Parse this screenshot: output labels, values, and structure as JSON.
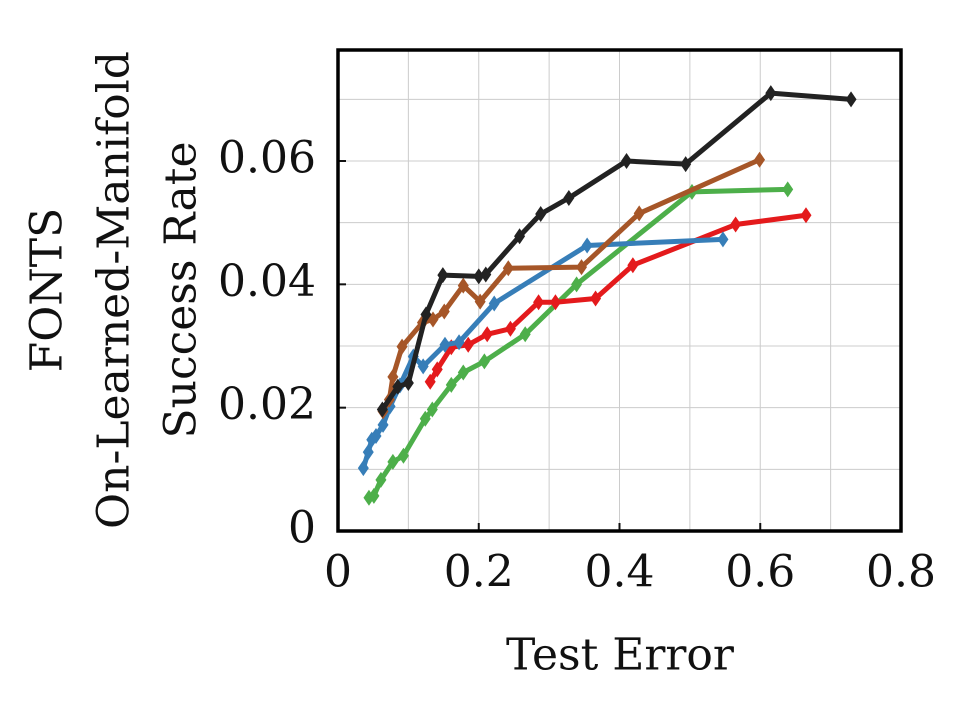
{
  "chart_data": {
    "type": "line",
    "xlabel": "Test Error",
    "ylabel": [
      "FONTS",
      "On-Learned-Manifold",
      "Success Rate"
    ],
    "xlim": [
      0,
      0.8
    ],
    "ylim": [
      0,
      0.078
    ],
    "xticks": [
      0,
      0.2,
      0.4,
      0.6,
      0.8
    ],
    "yticks": [
      0,
      0.02,
      0.04,
      0.06
    ],
    "xminorticks": [
      0.1,
      0.3,
      0.5,
      0.7
    ],
    "yminorticks": [
      0.01,
      0.03,
      0.05,
      0.07
    ],
    "grid": true,
    "series": [
      {
        "color": "#4daf4a",
        "x": [
          0.044,
          0.051,
          0.061,
          0.078,
          0.093,
          0.124,
          0.134,
          0.161,
          0.178,
          0.208,
          0.266,
          0.339,
          0.503,
          0.639
        ],
        "values": [
          0.0054,
          0.0057,
          0.0083,
          0.0112,
          0.0122,
          0.0182,
          0.0197,
          0.0237,
          0.0257,
          0.0275,
          0.0319,
          0.04,
          0.055,
          0.0554
        ]
      },
      {
        "color": "#e41a1c",
        "x": [
          0.131,
          0.141,
          0.161,
          0.185,
          0.212,
          0.245,
          0.285,
          0.309,
          0.366,
          0.419,
          0.565,
          0.665
        ],
        "values": [
          0.0242,
          0.0262,
          0.0298,
          0.0302,
          0.0319,
          0.0328,
          0.0371,
          0.0371,
          0.0377,
          0.0431,
          0.0497,
          0.0512
        ]
      },
      {
        "color": "#377eb8",
        "x": [
          0.036,
          0.043,
          0.048,
          0.054,
          0.064,
          0.074,
          0.088,
          0.107,
          0.121,
          0.152,
          0.172,
          0.222,
          0.354,
          0.547
        ],
        "values": [
          0.0102,
          0.0128,
          0.0148,
          0.0154,
          0.0172,
          0.0202,
          0.0236,
          0.0283,
          0.0267,
          0.0302,
          0.0306,
          0.0369,
          0.0463,
          0.0473
        ]
      },
      {
        "color": "#a65628",
        "x": [
          0.064,
          0.073,
          0.078,
          0.091,
          0.12,
          0.135,
          0.151,
          0.178,
          0.202,
          0.242,
          0.346,
          0.428,
          0.599
        ],
        "values": [
          0.0194,
          0.0213,
          0.025,
          0.0299,
          0.0338,
          0.0343,
          0.0356,
          0.0398,
          0.0372,
          0.0426,
          0.0428,
          0.0515,
          0.0602
        ]
      },
      {
        "color": "#222222",
        "x": [
          0.063,
          0.085,
          0.1,
          0.125,
          0.149,
          0.2,
          0.21,
          0.258,
          0.288,
          0.328,
          0.41,
          0.494,
          0.615,
          0.729
        ],
        "values": [
          0.0197,
          0.0234,
          0.024,
          0.0351,
          0.0415,
          0.0413,
          0.0416,
          0.0478,
          0.0514,
          0.054,
          0.06,
          0.0595,
          0.071,
          0.07
        ]
      }
    ]
  }
}
